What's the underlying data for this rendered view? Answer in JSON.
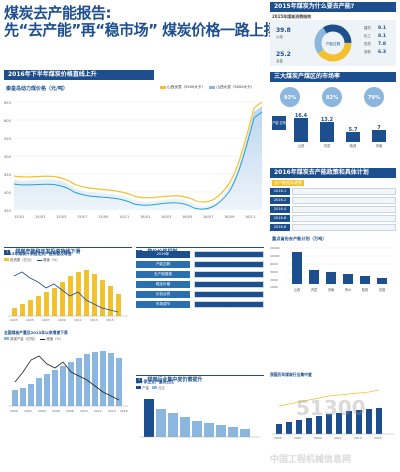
{
  "header": {
    "title_line1": "煤炭去产能报告:",
    "title_line2": "先“去产能”再“稳市场”  煤炭价格一路上扬"
  },
  "main_chart": {
    "section": "2016年下半年煤炭价格直线上升",
    "subtitle": "秦皇岛动力煤价格（元/吨）",
    "legend": [
      "山西优混（5500大卡）",
      "山西大混（5000大卡）"
    ],
    "x_labels": [
      "15/01",
      "15/03",
      "15/05",
      "15/07",
      "15/09",
      "15/11",
      "16/01",
      "16/03",
      "16/05",
      "16/07",
      "16/09",
      "16/11"
    ],
    "y_labels": [
      "650",
      "600",
      "550",
      "500",
      "450",
      "400",
      "350"
    ]
  },
  "right_top": {
    "section": "2015年煤炭为什么要去产能?",
    "subtitle": "2015年煤炭消费结构",
    "values": [
      "39.8",
      "25.2",
      "9.1",
      "8.1",
      "7.8",
      "6.3"
    ],
    "labels": [
      "火电",
      "冶金",
      "建材",
      "化工",
      "供热",
      "其他"
    ],
    "center": "产能过剩"
  },
  "right_mid": {
    "section": "三大煤炭产煤区的市场率",
    "rates": [
      "93%",
      "82%",
      "79%"
    ],
    "bar_title": "产能 亿吨",
    "bar_values": [
      "16.4",
      "13.2",
      "5.7",
      "7"
    ],
    "bar_labels": [
      "山西",
      "内蒙",
      "陕西",
      "河南"
    ]
  },
  "plan": {
    "section": "2016年煤炭去产能政策和具体计划",
    "subtitle": "去产能相关政策",
    "years": [
      "2016.1",
      "2016.2",
      "2016.4",
      "2016.6",
      "2016.8"
    ],
    "key_section": "重点省份去产能计划（万吨）",
    "key_values": [
      "20000",
      "10000",
      "6000",
      "3000",
      "2000",
      "1000"
    ],
    "key_labels": [
      "山西",
      "内蒙",
      "河南",
      "贵州",
      "陕西",
      "安徽"
    ]
  },
  "sec1": {
    "badge": "1",
    "title": "煤炭产能和开发投资持续下滑",
    "chart_title": "2015年煤炭开采固定资产投资额及增速",
    "legend": [
      "投资额（亿元）",
      "增速（%）"
    ],
    "x_labels": [
      "2003",
      "2005",
      "2007",
      "2009",
      "2011",
      "2013",
      "2015"
    ]
  },
  "sec2": {
    "badge": "2",
    "title": "稳价价格机制",
    "left_items": [
      "2016年",
      "产能过剩",
      "去产能措施",
      "稳定价格",
      "长协合同",
      "市场调节"
    ],
    "right_items": [
      "价格上涨",
      "储备产能",
      "一级响应",
      "二级响应",
      "三级响应",
      "四级响应"
    ]
  },
  "sec_lower_left": {
    "chart_title": "全国煤炭产量及2013年以来增速下滑",
    "legend": [
      "原煤产量（亿吨）",
      "增速（%）"
    ],
    "x_labels": [
      "2000",
      "2002",
      "2004",
      "2006",
      "2008",
      "2010",
      "2012",
      "2014",
      "2016"
    ]
  },
  "sec3": {
    "badge": "3",
    "title": "煤炭行业集中度仍需提升",
    "chart_title": "前十家企业产量及占比",
    "legend": [
      "产量",
      "占比"
    ]
  },
  "sec_right_low": {
    "chart_title": "我国历年煤炭行业集中度",
    "x_labels": [
      "2005",
      "2007",
      "2009",
      "2011",
      "2013",
      "2015"
    ]
  },
  "watermark": {
    "number": "51300",
    "text": "中国工程机械信息网"
  },
  "colors": {
    "brand": "#1d4f8f",
    "gold": "#f2c12e",
    "light_blue": "#8bb6dd",
    "teal": "#2a9fd6"
  }
}
